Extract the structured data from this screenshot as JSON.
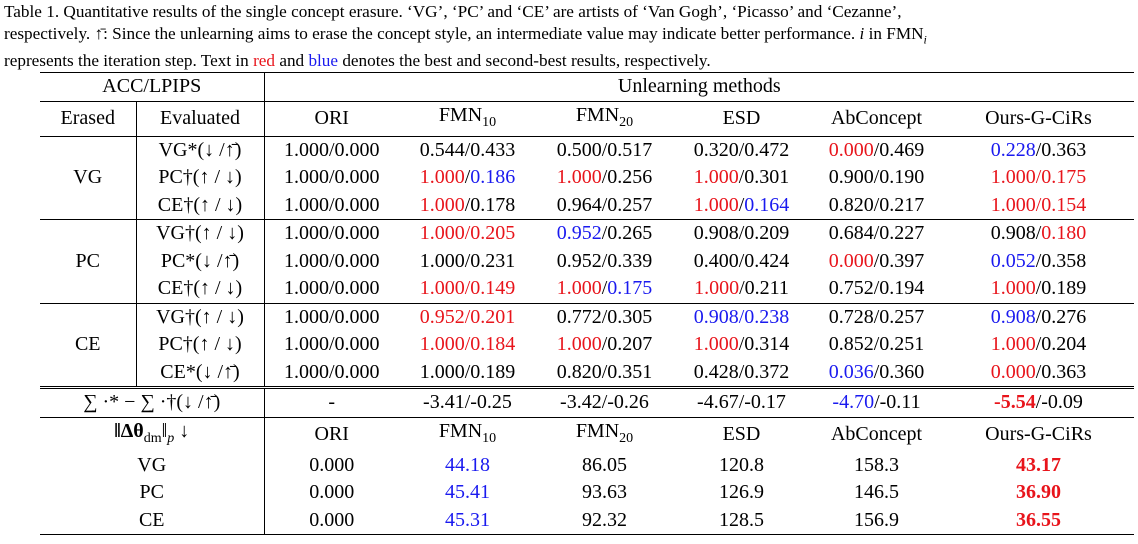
{
  "caption": {
    "line1": "Table 1. Quantitative results of the single concept erasure.  ‘VG’, ‘PC’ and ‘CE’ are artists of ‘Van Gogh’, ‘Picasso’ and ‘Cezanne’,",
    "line2a": "respectively. ",
    "line2sym": "↑̄",
    "line2b": ": Since the unlearning aims to erase the concept style, an intermediate value may indicate better performance. ",
    "line2i": "i",
    "line2c": " in FMN",
    "line2sub": "i",
    "line3a": "represents the iteration step. Text in ",
    "line3red": "red",
    "line3mid": " and ",
    "line3blue": "blue",
    "line3b": " denotes the best and second-best results, respectively."
  },
  "header": {
    "metric": "ACC/LPIPS",
    "group": "Unlearning methods",
    "erased": "Erased",
    "evaluated": "Evaluated",
    "methods": [
      "ORI",
      "FMN",
      "FMN",
      "ESD",
      "AbConcept",
      "Ours-G-CiRs"
    ],
    "fmn_subs": [
      "10",
      "20"
    ]
  },
  "groups": [
    {
      "erased": "VG",
      "rows": [
        {
          "eval": "VG*(↓ /↑̄)",
          "cells": [
            [
              {
                "t": "1.000/0.000"
              }
            ],
            [
              {
                "t": "0.544/0.433"
              }
            ],
            [
              {
                "t": "0.500/0.517"
              }
            ],
            [
              {
                "t": "0.320/0.472"
              }
            ],
            [
              {
                "t": "0.000",
                "c": "red"
              },
              {
                "t": "/0.469"
              }
            ],
            [
              {
                "t": "0.228",
                "c": "blue"
              },
              {
                "t": "/0.363"
              }
            ]
          ]
        },
        {
          "eval": "PC†(↑ / ↓)",
          "cells": [
            [
              {
                "t": "1.000/0.000"
              }
            ],
            [
              {
                "t": "1.000",
                "c": "red"
              },
              {
                "t": "/"
              },
              {
                "t": "0.186",
                "c": "blue"
              }
            ],
            [
              {
                "t": "1.000",
                "c": "red"
              },
              {
                "t": "/0.256"
              }
            ],
            [
              {
                "t": "1.000",
                "c": "red"
              },
              {
                "t": "/0.301"
              }
            ],
            [
              {
                "t": "0.900/0.190"
              }
            ],
            [
              {
                "t": "1.000/0.175",
                "c": "red"
              }
            ]
          ]
        },
        {
          "eval": "CE†(↑ / ↓)",
          "cells": [
            [
              {
                "t": "1.000/0.000"
              }
            ],
            [
              {
                "t": "1.000",
                "c": "red"
              },
              {
                "t": "/0.178"
              }
            ],
            [
              {
                "t": "0.964/0.257"
              }
            ],
            [
              {
                "t": "1.000",
                "c": "red"
              },
              {
                "t": "/"
              },
              {
                "t": "0.164",
                "c": "blue"
              }
            ],
            [
              {
                "t": "0.820/0.217"
              }
            ],
            [
              {
                "t": "1.000/0.154",
                "c": "red"
              }
            ]
          ]
        }
      ]
    },
    {
      "erased": "PC",
      "rows": [
        {
          "eval": "VG†(↑ / ↓)",
          "cells": [
            [
              {
                "t": "1.000/0.000"
              }
            ],
            [
              {
                "t": "1.000/0.205",
                "c": "red"
              }
            ],
            [
              {
                "t": "0.952",
                "c": "blue"
              },
              {
                "t": "/0.265"
              }
            ],
            [
              {
                "t": "0.908/0.209"
              }
            ],
            [
              {
                "t": "0.684/0.227"
              }
            ],
            [
              {
                "t": "0.908/"
              },
              {
                "t": "0.180",
                "c": "red"
              }
            ]
          ]
        },
        {
          "eval": "PC*(↓ /↑̄)",
          "cells": [
            [
              {
                "t": "1.000/0.000"
              }
            ],
            [
              {
                "t": "1.000/0.231"
              }
            ],
            [
              {
                "t": "0.952/0.339"
              }
            ],
            [
              {
                "t": "0.400/0.424"
              }
            ],
            [
              {
                "t": "0.000",
                "c": "red"
              },
              {
                "t": "/0.397"
              }
            ],
            [
              {
                "t": "0.052",
                "c": "blue"
              },
              {
                "t": "/0.358"
              }
            ]
          ]
        },
        {
          "eval": "CE†(↑ / ↓)",
          "cells": [
            [
              {
                "t": "1.000/0.000"
              }
            ],
            [
              {
                "t": "1.000/0.149",
                "c": "red"
              }
            ],
            [
              {
                "t": "1.000",
                "c": "red"
              },
              {
                "t": "/"
              },
              {
                "t": "0.175",
                "c": "blue"
              }
            ],
            [
              {
                "t": "1.000",
                "c": "red"
              },
              {
                "t": "/0.211"
              }
            ],
            [
              {
                "t": "0.752/0.194"
              }
            ],
            [
              {
                "t": "1.000",
                "c": "red"
              },
              {
                "t": "/0.189"
              }
            ]
          ]
        }
      ]
    },
    {
      "erased": "CE",
      "rows": [
        {
          "eval": "VG†(↑ / ↓)",
          "cells": [
            [
              {
                "t": "1.000/0.000"
              }
            ],
            [
              {
                "t": "0.952/0.201",
                "c": "red"
              }
            ],
            [
              {
                "t": "0.772/0.305"
              }
            ],
            [
              {
                "t": "0.908/0.238",
                "c": "blue"
              }
            ],
            [
              {
                "t": "0.728/0.257"
              }
            ],
            [
              {
                "t": "0.908",
                "c": "blue"
              },
              {
                "t": "/0.276"
              }
            ]
          ]
        },
        {
          "eval": "PC†(↑ / ↓)",
          "cells": [
            [
              {
                "t": "1.000/0.000"
              }
            ],
            [
              {
                "t": "1.000/0.184",
                "c": "red"
              }
            ],
            [
              {
                "t": "1.000",
                "c": "red"
              },
              {
                "t": "/0.207"
              }
            ],
            [
              {
                "t": "1.000",
                "c": "red"
              },
              {
                "t": "/0.314"
              }
            ],
            [
              {
                "t": "0.852/0.251"
              }
            ],
            [
              {
                "t": "1.000",
                "c": "red"
              },
              {
                "t": "/0.204"
              }
            ]
          ]
        },
        {
          "eval": "CE*(↓ /↑̄)",
          "cells": [
            [
              {
                "t": "1.000/0.000"
              }
            ],
            [
              {
                "t": "1.000/0.189"
              }
            ],
            [
              {
                "t": "0.820/0.351"
              }
            ],
            [
              {
                "t": "0.428/0.372"
              }
            ],
            [
              {
                "t": "0.036",
                "c": "blue"
              },
              {
                "t": "/0.360"
              }
            ],
            [
              {
                "t": "0.000",
                "c": "red"
              },
              {
                "t": "/0.363"
              }
            ]
          ]
        }
      ]
    }
  ],
  "sum_row": {
    "label": "∑ ·* − ∑ ·†(↓ /↑̄)",
    "cells": [
      [
        {
          "t": "-"
        }
      ],
      [
        {
          "t": "-3.41/-0.25"
        }
      ],
      [
        {
          "t": "-3.42/-0.26"
        }
      ],
      [
        {
          "t": "-4.67/-0.17"
        }
      ],
      [
        {
          "t": "-4.70",
          "c": "blue"
        },
        {
          "t": "/-0.11"
        }
      ],
      [
        {
          "t": "-5.54",
          "c": "red",
          "b": true
        },
        {
          "t": "/-0.09"
        }
      ]
    ]
  },
  "theta_section": {
    "label": "‖Δθ",
    "label_sub": "dm",
    "label_end": "‖",
    "label_p": "p",
    "label_arrow": " ↓",
    "methods": [
      "ORI",
      "FMN",
      "FMN",
      "ESD",
      "AbConcept",
      "Ours-G-CiRs"
    ],
    "fmn_subs": [
      "10",
      "20"
    ],
    "rows": [
      {
        "erased": "VG",
        "cells": [
          [
            {
              "t": "0.000"
            }
          ],
          [
            {
              "t": "44.18",
              "c": "blue"
            }
          ],
          [
            {
              "t": "86.05"
            }
          ],
          [
            {
              "t": "120.8"
            }
          ],
          [
            {
              "t": "158.3"
            }
          ],
          [
            {
              "t": "43.17",
              "c": "red",
              "b": true
            }
          ]
        ]
      },
      {
        "erased": "PC",
        "cells": [
          [
            {
              "t": "0.000"
            }
          ],
          [
            {
              "t": "45.41",
              "c": "blue"
            }
          ],
          [
            {
              "t": "93.63"
            }
          ],
          [
            {
              "t": "126.9"
            }
          ],
          [
            {
              "t": "146.5"
            }
          ],
          [
            {
              "t": "36.90",
              "c": "red",
              "b": true
            }
          ]
        ]
      },
      {
        "erased": "CE",
        "cells": [
          [
            {
              "t": "0.000"
            }
          ],
          [
            {
              "t": "45.31",
              "c": "blue"
            }
          ],
          [
            {
              "t": "92.32"
            }
          ],
          [
            {
              "t": "128.5"
            }
          ],
          [
            {
              "t": "156.9"
            }
          ],
          [
            {
              "t": "36.55",
              "c": "red",
              "b": true
            }
          ]
        ]
      }
    ]
  },
  "colors": {
    "best": "#e8141b",
    "second": "#1a1aef"
  }
}
